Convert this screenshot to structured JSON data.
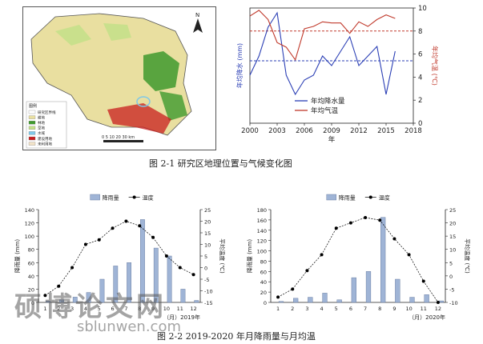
{
  "figure1": {
    "caption": "图 2-1    研究区地理位置与气候变化图",
    "map": {
      "legend_title": "图例",
      "legend_items": [
        {
          "label": "研究区界线",
          "color": "#ffffff"
        },
        {
          "label": "耕地",
          "color": "#e9dfa0"
        },
        {
          "label": "林地",
          "color": "#3f9a2e"
        },
        {
          "label": "草地",
          "color": "#c5e08a"
        },
        {
          "label": "水域",
          "color": "#7fc8e8"
        },
        {
          "label": "建设用地",
          "color": "#c81e1e"
        },
        {
          "label": "未利用地",
          "color": "#f2e3c8"
        }
      ],
      "scale_label": "0 5 10 20 30 km",
      "north_label": "N"
    }
  },
  "chart_data": [
    {
      "type": "line",
      "x": [
        2000,
        2001,
        2002,
        2003,
        2004,
        2005,
        2006,
        2007,
        2008,
        2009,
        2010,
        2011,
        2012,
        2013,
        2014,
        2015,
        2016
      ],
      "series": [
        {
          "name": "年均降水量",
          "axis": "left",
          "color": "#2b3fb5",
          "values": [
            300,
            340,
            400,
            430,
            300,
            260,
            290,
            300,
            340,
            320,
            350,
            380,
            320,
            340,
            360,
            260,
            350
          ]
        },
        {
          "name": "年均气温",
          "axis": "right",
          "color": "#c0392b",
          "values": [
            9.3,
            9.8,
            9.0,
            7.0,
            6.6,
            5.5,
            8.2,
            8.4,
            8.8,
            8.7,
            8.7,
            7.8,
            8.8,
            8.4,
            9.0,
            9.4,
            9.1
          ]
        }
      ],
      "reference_lines": [
        {
          "axis": "right",
          "value": 8.0,
          "color": "#c0392b",
          "style": "dashed"
        },
        {
          "axis": "left",
          "value": 330,
          "color": "#2b3fb5",
          "style": "dashed"
        }
      ],
      "xlabel": "年",
      "ylabel_left": "年均降水 (mm)",
      "ylabel_right": "年均气温 (℃)",
      "x_ticks": [
        "2000",
        "2003",
        "2006",
        "2009",
        "2012",
        "2015",
        "2018"
      ],
      "xlim": [
        2000,
        2018
      ],
      "ylim_left": [
        200,
        440
      ],
      "yticks_right": [
        "0",
        "2",
        "4",
        "6",
        "8",
        "10"
      ],
      "ylim_right": [
        0,
        10
      ]
    },
    {
      "type": "bar+line",
      "categories": [
        "1",
        "2",
        "3",
        "4",
        "5",
        "6",
        "7",
        "8",
        "9",
        "10",
        "11",
        "12"
      ],
      "series": [
        {
          "name": "降雨量",
          "kind": "bar",
          "axis": "left",
          "color": "#9fb4d6",
          "values": [
            2,
            4,
            8,
            15,
            35,
            55,
            60,
            125,
            82,
            70,
            20,
            3
          ]
        },
        {
          "name": "温度",
          "kind": "line",
          "axis": "right",
          "color": "#000000",
          "values": [
            -12,
            -8,
            0,
            10,
            12,
            17,
            20,
            18,
            13,
            5,
            0,
            -3
          ]
        }
      ],
      "xlabel": "（月）2019年",
      "ylabel_left": "降雨量 (mm)",
      "ylabel_right": "平均温度 (℃)",
      "yticks_left": [
        "0",
        "20",
        "40",
        "60",
        "80",
        "100",
        "120",
        "140"
      ],
      "ylim_left": [
        0,
        140
      ],
      "yticks_right": [
        "-15",
        "-10",
        "-5",
        "0",
        "5",
        "10",
        "15",
        "20",
        "25"
      ],
      "ylim_right": [
        -15,
        25
      ]
    },
    {
      "type": "bar+line",
      "categories": [
        "1",
        "2",
        "3",
        "4",
        "5",
        "6",
        "7",
        "8",
        "9",
        "10",
        "11",
        "12"
      ],
      "series": [
        {
          "name": "降雨量",
          "kind": "bar",
          "axis": "left",
          "color": "#9fb4d6",
          "values": [
            2,
            8,
            10,
            18,
            5,
            48,
            60,
            165,
            45,
            10,
            15,
            3
          ]
        },
        {
          "name": "温度",
          "kind": "line",
          "axis": "right",
          "color": "#000000",
          "values": [
            -8,
            -5,
            2,
            8,
            18,
            20,
            22,
            21,
            14,
            8,
            -2,
            -10
          ]
        }
      ],
      "xlabel": "（月）2020年",
      "ylabel_left": "降雨量 (mm)",
      "ylabel_right": "平均温度 (℃)",
      "yticks_left": [
        "0",
        "20",
        "40",
        "60",
        "80",
        "100",
        "120",
        "140",
        "160",
        "180"
      ],
      "ylim_left": [
        0,
        180
      ],
      "yticks_right": [
        "-10",
        "-5",
        "0",
        "5",
        "10",
        "15",
        "20",
        "25"
      ],
      "ylim_right": [
        -10,
        25
      ]
    }
  ],
  "figure2": {
    "caption": "图 2-2    2019-2020 年月降雨量与月均温"
  },
  "watermark": {
    "text": "硕博论文网",
    "url": "sblunwen.com"
  }
}
